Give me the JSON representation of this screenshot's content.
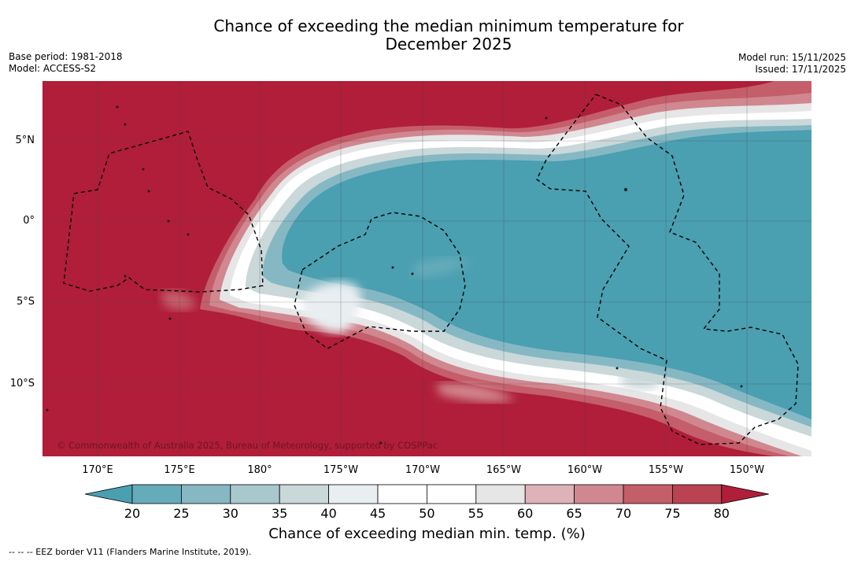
{
  "title": {
    "line1": "Chance of exceeding the median minimum temperature for",
    "line2": "December 2025"
  },
  "meta": {
    "base_period": "Base period: 1981-2018",
    "model": "Model: ACCESS-S2",
    "model_run": "Model run: 15/11/2025",
    "issued": "Issued: 17/11/2025"
  },
  "map": {
    "credit": "© Commonwealth of Australia 2025, Bureau of Meteorology, supported by COSPPac",
    "lat_labels": [
      "5°N",
      "0°",
      "5°S",
      "10°S"
    ],
    "lon_labels": [
      "170°E",
      "175°E",
      "180°",
      "175°W",
      "170°W",
      "165°W",
      "160°W",
      "155°W",
      "150°W"
    ],
    "colors": {
      "hot": "#b01e39",
      "cool": "#4a9fb1"
    }
  },
  "colorbar": {
    "ticks": [
      "20",
      "25",
      "30",
      "35",
      "40",
      "45",
      "50",
      "55",
      "60",
      "65",
      "70",
      "75",
      "80"
    ],
    "colors": [
      "#4a9fb1",
      "#65abba",
      "#86b8c4",
      "#a9c8cd",
      "#cad8da",
      "#e9eef1",
      "#ffffff",
      "#ffffff",
      "#e6e6e6",
      "#ddb2b8",
      "#d1878f",
      "#c45e6a",
      "#b94352",
      "#b01e39"
    ],
    "label": "Chance of exceeding median min. temp. (%)"
  },
  "footnote": "--  --  -- EEZ border V11 (Flanders Marine Institute, 2019)."
}
